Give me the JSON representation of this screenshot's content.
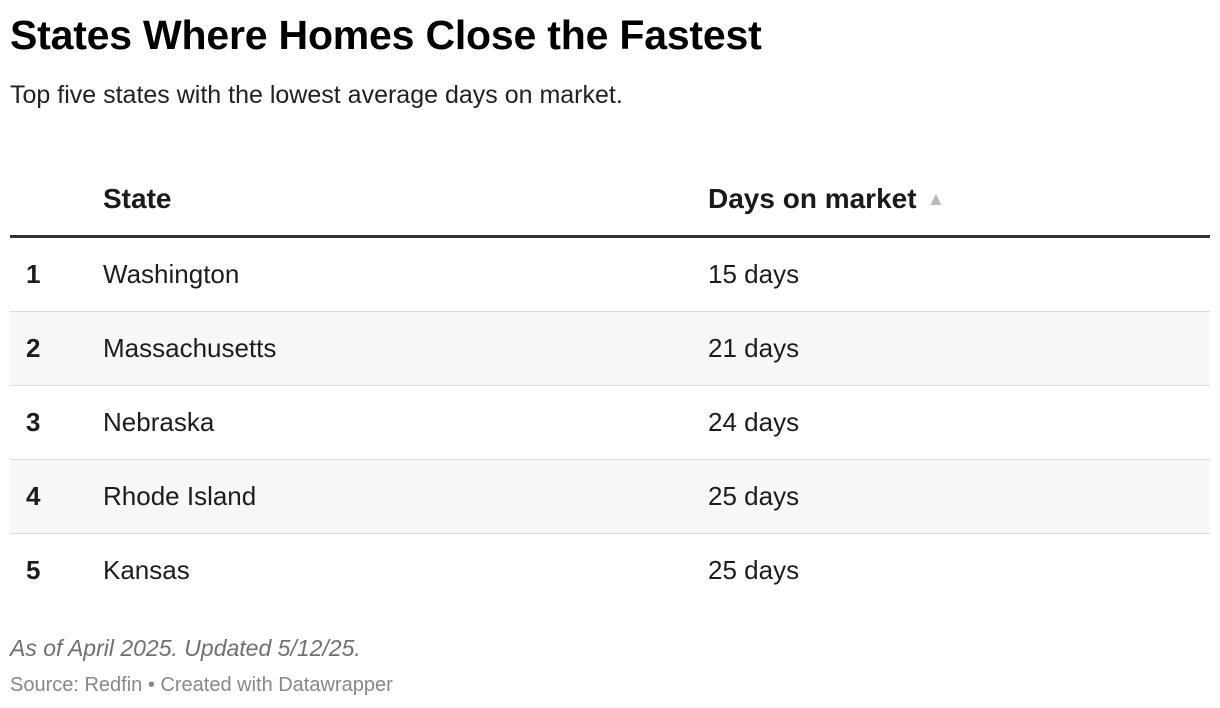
{
  "header": {
    "title": "States Where Homes Close the Fastest",
    "subtitle": "Top five states with the lowest average days on market."
  },
  "chart_data": {
    "type": "table",
    "columns": [
      "",
      "State",
      "Days on market"
    ],
    "sort": {
      "column": "Days on market",
      "direction": "ascending"
    },
    "rows": [
      {
        "rank": "1",
        "state": "Washington",
        "days": "15 days",
        "value": 15
      },
      {
        "rank": "2",
        "state": "Massachusetts",
        "days": "21 days",
        "value": 21
      },
      {
        "rank": "3",
        "state": "Nebraska",
        "days": "24 days",
        "value": 24
      },
      {
        "rank": "4",
        "state": "Rhode Island",
        "days": "25 days",
        "value": 25
      },
      {
        "rank": "5",
        "state": "Kansas",
        "days": "25 days",
        "value": 25
      }
    ]
  },
  "table": {
    "sort_icon": "triangle-up-icon",
    "sort_glyph": "▲",
    "sort_icon_color": "#bbbbbb",
    "stripe_color": "#f7f7f7"
  },
  "notes": "As of April 2025. Updated 5/12/25.",
  "footer": "Source: Redfin • Created with Datawrapper"
}
